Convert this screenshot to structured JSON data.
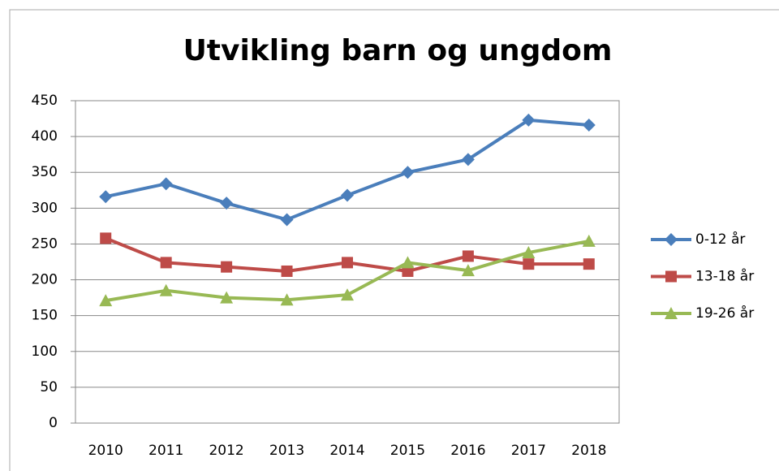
{
  "chart_data": {
    "type": "line",
    "title": "Utvikling barn og ungdom",
    "categories": [
      "2010",
      "2011",
      "2012",
      "2013",
      "2014",
      "2015",
      "2016",
      "2017",
      "2018"
    ],
    "series": [
      {
        "name": "0-12 år",
        "color": "#4a7ebb",
        "marker": "diamond",
        "values": [
          316,
          334,
          307,
          284,
          318,
          350,
          368,
          423,
          416
        ]
      },
      {
        "name": "13-18 år",
        "color": "#be4b48",
        "marker": "square",
        "values": [
          258,
          224,
          218,
          212,
          224,
          212,
          233,
          222,
          222
        ]
      },
      {
        "name": "19-26 år",
        "color": "#98b954",
        "marker": "triangle",
        "values": [
          171,
          185,
          175,
          172,
          179,
          224,
          213,
          238,
          254
        ]
      }
    ],
    "ylim": [
      0,
      450
    ],
    "yticks": [
      0,
      50,
      100,
      150,
      200,
      250,
      300,
      350,
      400,
      450
    ],
    "grid": true,
    "legend": "right"
  }
}
